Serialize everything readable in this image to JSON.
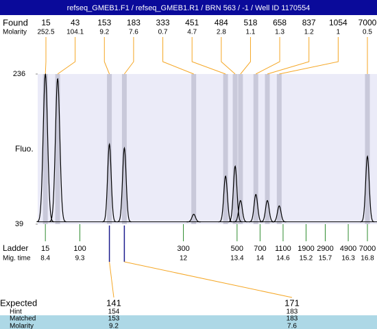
{
  "title": "refseq_GMEB1.F1 / refseq_GMEB1.R1 / BRN 563 / -1 / Well ID 1170554",
  "found": {
    "label": "Found",
    "molarity_label": "Molarity",
    "sizes": [
      15,
      43,
      153,
      183,
      333,
      451,
      484,
      518,
      658,
      837,
      1054,
      7000
    ],
    "molarity": [
      252.5,
      104.1,
      9.2,
      7.6,
      0.7,
      4.7,
      2.8,
      1.1,
      1.3,
      1.2,
      1,
      0.5
    ]
  },
  "chart_data": {
    "type": "electropherogram",
    "ylabel": "Fluo.",
    "ylim": [
      39,
      236
    ],
    "yticks": [
      39,
      236
    ],
    "xlim": [
      8.2,
      17.05
    ],
    "baseline": 42,
    "peaks": {
      "x": [
        8.4,
        8.72,
        10.07,
        10.46,
        12.27,
        13.1,
        13.35,
        13.49,
        13.89,
        14.19,
        14.5,
        16.8
      ],
      "values": [
        236,
        230,
        144,
        139,
        52,
        102,
        115,
        70,
        78,
        70,
        63,
        128
      ]
    },
    "trace_color": "#000000",
    "band_color": "#c9c9da",
    "plot_color": "#ebebf8",
    "link_color": "#f5a623"
  },
  "ladder": {
    "label": "Ladder",
    "time_label": "Mig. time",
    "color": "#2e8b2e",
    "sizes": [
      15,
      100,
      300,
      500,
      700,
      1100,
      1900,
      2900,
      4900,
      7000
    ],
    "x": [
      8.4,
      9.3,
      12,
      13.4,
      14,
      14.6,
      15.2,
      15.7,
      16.3,
      16.8
    ]
  },
  "expected": {
    "labels": [
      "Expected",
      "Hint",
      "Matched",
      "Molarity"
    ],
    "color": "#add8e6",
    "line_color": "#1a1a8c",
    "columns": [
      {
        "expected": 141,
        "hint": 154,
        "matched": 153,
        "molarity": 9.2
      },
      {
        "expected": 171,
        "hint": 183,
        "matched": 183,
        "molarity": 7.6
      }
    ]
  }
}
